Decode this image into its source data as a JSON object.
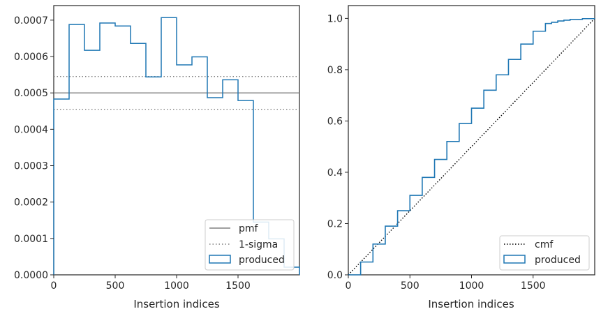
{
  "colors": {
    "hist": "#1f77b4",
    "reference": "#808080",
    "cmf": "#000000",
    "axes": "#262626",
    "legend_border": "#cccccc"
  },
  "chart_data": [
    {
      "type": "step",
      "title": "",
      "xlabel": "Insertion indices",
      "ylabel": "",
      "xlim": [
        0,
        2000
      ],
      "ylim": [
        0,
        0.00074
      ],
      "xticks": [
        0,
        500,
        1000,
        1500
      ],
      "xtick_labels": [
        "0",
        "500",
        "1000",
        "1500"
      ],
      "yticks": [
        0,
        0.0001,
        0.0002,
        0.0003,
        0.0004,
        0.0005,
        0.0006,
        0.0007
      ],
      "ytick_labels": [
        "0.0000",
        "0.0001",
        "0.0002",
        "0.0003",
        "0.0004",
        "0.0005",
        "0.0006",
        "0.0007"
      ],
      "legend_position": "lower right",
      "reference_lines": [
        {
          "name": "pmf",
          "y": 0.0005,
          "style": "solid"
        },
        {
          "name": "1-sigma",
          "y": 0.000545,
          "style": "dotted"
        },
        {
          "name": "1-sigma",
          "y": 0.000455,
          "style": "dotted"
        }
      ],
      "series": [
        {
          "name": "produced",
          "bin_edges": [
            0,
            125,
            250,
            375,
            500,
            625,
            750,
            875,
            1000,
            1125,
            1250,
            1375,
            1500,
            1625,
            1750,
            1875,
            2000
          ],
          "values": [
            0.000483,
            0.000688,
            0.000617,
            0.000692,
            0.000684,
            0.000636,
            0.000544,
            0.000707,
            0.000577,
            0.000599,
            0.000487,
            0.000536,
            0.000479,
            0.000145,
            9.9e-05,
            2.1e-05
          ]
        }
      ],
      "legend": [
        {
          "label": "pmf",
          "style": "solid-gray"
        },
        {
          "label": "1-sigma",
          "style": "dotted-gray"
        },
        {
          "label": "produced",
          "style": "box-blue"
        }
      ]
    },
    {
      "type": "line",
      "title": "",
      "xlabel": "Insertion indices",
      "ylabel": "",
      "xlim": [
        0,
        2000
      ],
      "ylim": [
        0,
        1.05
      ],
      "xticks": [
        0,
        500,
        1000,
        1500
      ],
      "xtick_labels": [
        "0",
        "500",
        "1000",
        "1500"
      ],
      "yticks": [
        0,
        0.2,
        0.4,
        0.6,
        0.8,
        1.0
      ],
      "ytick_labels": [
        "0.0",
        "0.2",
        "0.4",
        "0.6",
        "0.8",
        "1.0"
      ],
      "legend_position": "lower right",
      "series": [
        {
          "name": "cmf",
          "style": "dotted",
          "x": [
            0,
            2000
          ],
          "y": [
            0,
            1.0
          ]
        },
        {
          "name": "produced",
          "style": "step",
          "x": [
            0,
            100,
            200,
            300,
            400,
            500,
            600,
            700,
            800,
            900,
            1000,
            1100,
            1200,
            1300,
            1400,
            1500,
            1600,
            1650,
            1700,
            1750,
            1800,
            1900,
            2000
          ],
          "y": [
            0,
            0.05,
            0.12,
            0.19,
            0.25,
            0.31,
            0.38,
            0.45,
            0.52,
            0.59,
            0.65,
            0.72,
            0.78,
            0.84,
            0.9,
            0.95,
            0.98,
            0.985,
            0.99,
            0.993,
            0.996,
            0.999,
            1.0
          ]
        }
      ],
      "legend": [
        {
          "label": "cmf",
          "style": "dotted-black"
        },
        {
          "label": "produced",
          "style": "box-blue"
        }
      ]
    }
  ]
}
